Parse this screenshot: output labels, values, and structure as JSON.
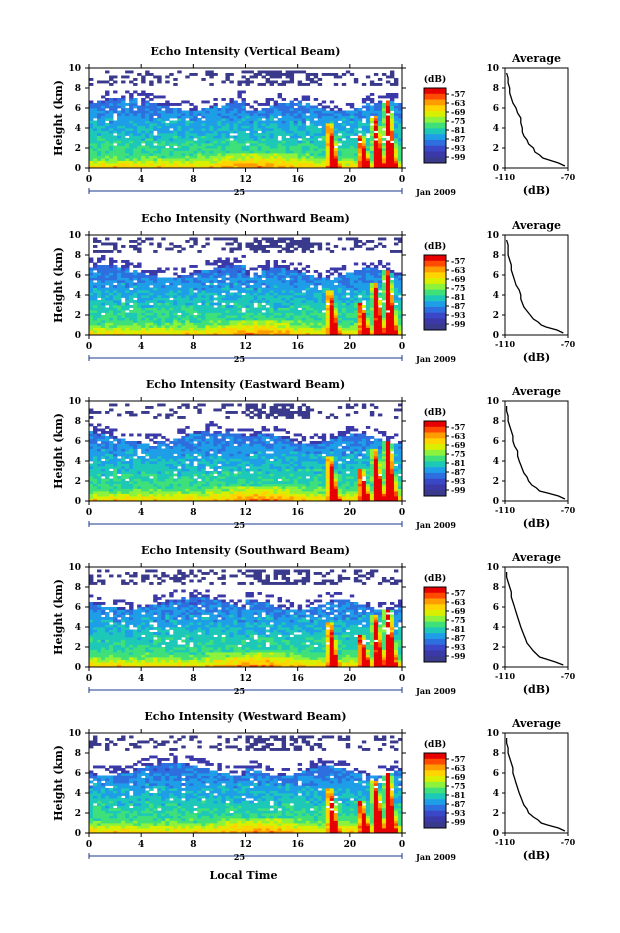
{
  "chart_data": {
    "type": "heatmap",
    "y_axis_label": "Height (km)",
    "y_ticks": [
      0,
      2,
      4,
      6,
      8,
      10
    ],
    "ylim": [
      0,
      10
    ],
    "x_ticks": [
      "0",
      "4",
      "8",
      "12",
      "16",
      "20",
      "0"
    ],
    "xlim": [
      0,
      24
    ],
    "date_day": "25",
    "date_month": "Jan 2009",
    "x_axis_title": "Local Time",
    "colorbar": {
      "unit": "(dB)",
      "ticks": [
        "-57",
        "-63",
        "-69",
        "-75",
        "-81",
        "-87",
        "-93",
        "-99"
      ],
      "colors": [
        "#e60000",
        "#ff4a00",
        "#ff9c00",
        "#ffd400",
        "#d8f000",
        "#8cf23c",
        "#3fe07a",
        "#1ec8b8",
        "#1f9ee8",
        "#2e6fe0",
        "#3a48c8",
        "#3b38a8",
        "#3a3a8c"
      ]
    },
    "average_profile": {
      "title": "Average",
      "xlabel": "(dB)",
      "x_ticks": [
        "-110",
        "-70"
      ],
      "xlim": [
        -110,
        -70
      ],
      "y_ticks": [
        0,
        2,
        4,
        6,
        8,
        10
      ]
    },
    "panels": [
      {
        "title": "Echo Intensity (Vertical Beam)",
        "profile": [
          [
            0.2,
            -72
          ],
          [
            0.5,
            -76
          ],
          [
            0.8,
            -82
          ],
          [
            1.0,
            -86
          ],
          [
            1.3,
            -88
          ],
          [
            1.6,
            -91
          ],
          [
            2.0,
            -92
          ],
          [
            2.4,
            -95
          ],
          [
            2.8,
            -96
          ],
          [
            3.2,
            -98
          ],
          [
            3.6,
            -99
          ],
          [
            4.0,
            -99
          ],
          [
            4.5,
            -100
          ],
          [
            5.0,
            -100
          ],
          [
            5.5,
            -102
          ],
          [
            6.0,
            -103
          ],
          [
            6.5,
            -105
          ],
          [
            7.0,
            -106
          ],
          [
            7.5,
            -107
          ],
          [
            8.0,
            -107
          ],
          [
            8.5,
            -108
          ],
          [
            9.0,
            -108
          ],
          [
            9.5,
            -109
          ]
        ]
      },
      {
        "title": "Echo Intensity (Northward Beam)",
        "profile": [
          [
            0.2,
            -73
          ],
          [
            0.5,
            -77
          ],
          [
            0.8,
            -84
          ],
          [
            1.0,
            -87
          ],
          [
            1.3,
            -89
          ],
          [
            1.6,
            -92
          ],
          [
            2.0,
            -94
          ],
          [
            2.4,
            -96
          ],
          [
            2.8,
            -98
          ],
          [
            3.2,
            -99
          ],
          [
            3.6,
            -100
          ],
          [
            4.0,
            -100
          ],
          [
            4.5,
            -101
          ],
          [
            5.0,
            -103
          ],
          [
            5.5,
            -104
          ],
          [
            6.0,
            -105
          ],
          [
            6.5,
            -106
          ],
          [
            7.0,
            -106
          ],
          [
            7.5,
            -107
          ],
          [
            8.0,
            -108
          ],
          [
            8.5,
            -108
          ],
          [
            9.0,
            -108
          ],
          [
            9.5,
            -109
          ]
        ]
      },
      {
        "title": "Echo Intensity (Eastward Beam)",
        "profile": [
          [
            0.2,
            -72
          ],
          [
            0.5,
            -76
          ],
          [
            0.8,
            -83
          ],
          [
            1.0,
            -88
          ],
          [
            1.3,
            -90
          ],
          [
            1.6,
            -93
          ],
          [
            2.0,
            -95
          ],
          [
            2.4,
            -96
          ],
          [
            2.8,
            -98
          ],
          [
            3.2,
            -99
          ],
          [
            3.6,
            -100
          ],
          [
            4.0,
            -101
          ],
          [
            4.5,
            -102
          ],
          [
            5.0,
            -102
          ],
          [
            5.5,
            -104
          ],
          [
            6.0,
            -105
          ],
          [
            6.5,
            -105
          ],
          [
            7.0,
            -106
          ],
          [
            7.5,
            -107
          ],
          [
            8.0,
            -108
          ],
          [
            8.5,
            -108
          ],
          [
            9.0,
            -109
          ],
          [
            9.5,
            -109
          ]
        ]
      },
      {
        "title": "Echo Intensity (Southward Beam)",
        "profile": [
          [
            0.2,
            -73
          ],
          [
            0.5,
            -78
          ],
          [
            0.8,
            -84
          ],
          [
            1.0,
            -88
          ],
          [
            1.3,
            -90
          ],
          [
            1.6,
            -92
          ],
          [
            2.0,
            -94
          ],
          [
            2.4,
            -96
          ],
          [
            2.8,
            -97
          ],
          [
            3.2,
            -98
          ],
          [
            3.6,
            -99
          ],
          [
            4.0,
            -100
          ],
          [
            4.5,
            -101
          ],
          [
            5.0,
            -102
          ],
          [
            5.5,
            -103
          ],
          [
            6.0,
            -104
          ],
          [
            6.5,
            -105
          ],
          [
            7.0,
            -106
          ],
          [
            7.5,
            -106
          ],
          [
            8.0,
            -107
          ],
          [
            8.5,
            -108
          ],
          [
            9.0,
            -109
          ],
          [
            9.5,
            -109
          ]
        ]
      },
      {
        "title": "Echo Intensity (Westward Beam)",
        "profile": [
          [
            0.2,
            -72
          ],
          [
            0.5,
            -76
          ],
          [
            0.8,
            -83
          ],
          [
            1.0,
            -87
          ],
          [
            1.3,
            -89
          ],
          [
            1.6,
            -92
          ],
          [
            2.0,
            -95
          ],
          [
            2.4,
            -96
          ],
          [
            2.8,
            -98
          ],
          [
            3.2,
            -99
          ],
          [
            3.6,
            -100
          ],
          [
            4.0,
            -101
          ],
          [
            4.5,
            -102
          ],
          [
            5.0,
            -103
          ],
          [
            5.5,
            -104
          ],
          [
            6.0,
            -105
          ],
          [
            6.5,
            -105
          ],
          [
            7.0,
            -106
          ],
          [
            7.5,
            -107
          ],
          [
            8.0,
            -108
          ],
          [
            8.5,
            -108
          ],
          [
            9.0,
            -109
          ],
          [
            9.5,
            -109
          ]
        ]
      }
    ]
  }
}
